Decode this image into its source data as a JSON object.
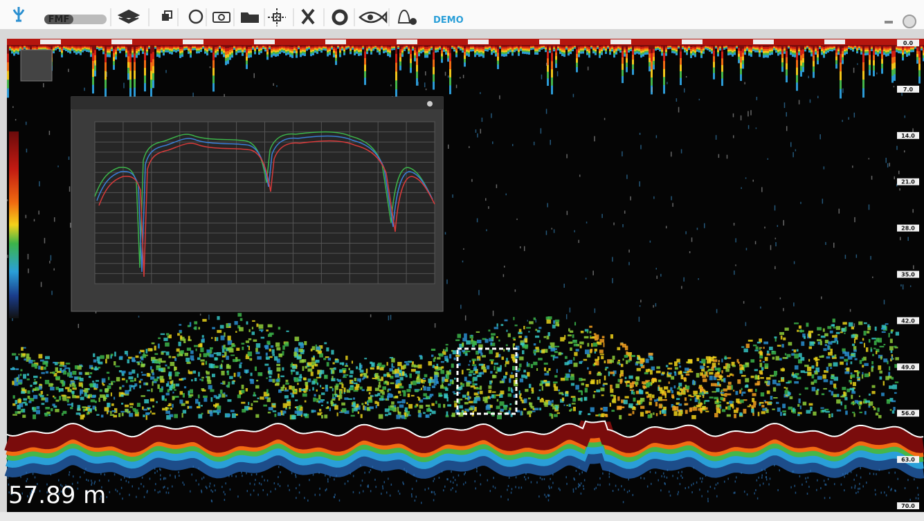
{
  "toolbar": {
    "mode_button": "FMF",
    "status": "DEMO"
  },
  "depth_scale": [
    "0.0",
    "7.0",
    "14.0",
    "21.0",
    "28.0",
    "35.0",
    "42.0",
    "49.0",
    "56.0",
    "63.0",
    "70.0"
  ],
  "depth_readout": "57.89 m"
}
